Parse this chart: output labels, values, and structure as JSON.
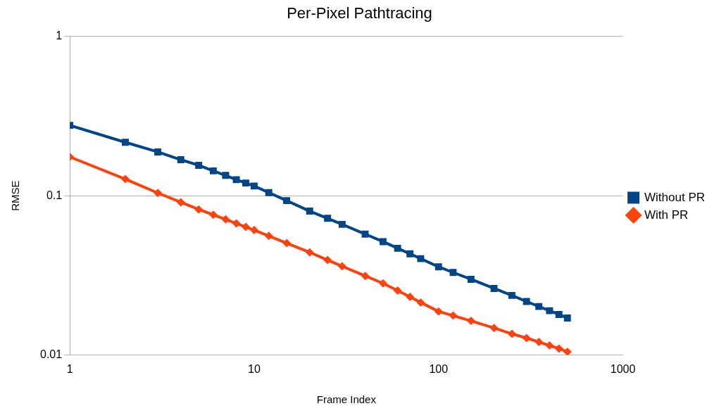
{
  "chart_data": {
    "type": "line",
    "title": "Per-Pixel Pathtracing",
    "xlabel": "Frame Index",
    "ylabel": "RMSE",
    "log": "xy",
    "grid": "y",
    "legend": "right",
    "xlim": [
      1,
      1000
    ],
    "xticks": [
      1,
      10,
      100,
      1000
    ],
    "ylim": [
      0.01,
      1
    ],
    "yticks": [
      0.01,
      0.1,
      1
    ],
    "x": [
      1,
      2,
      3,
      4,
      5,
      6,
      7,
      8,
      9,
      10,
      12,
      15,
      20,
      25,
      30,
      40,
      50,
      60,
      70,
      80,
      100,
      120,
      150,
      200,
      250,
      300,
      350,
      400,
      450,
      500
    ],
    "series": [
      {
        "name": "Without PR",
        "color": "#004586",
        "marker": "square",
        "values": [
          0.276,
          0.216,
          0.188,
          0.168,
          0.155,
          0.143,
          0.134,
          0.126,
          0.12,
          0.115,
          0.1045,
          0.0931,
          0.08,
          0.0721,
          0.0661,
          0.0574,
          0.0515,
          0.0468,
          0.0432,
          0.0403,
          0.0358,
          0.033,
          0.0299,
          0.0262,
          0.0237,
          0.0217,
          0.0202,
          0.019,
          0.018,
          0.0171
        ]
      },
      {
        "name": "With PR",
        "color": "#ff420e",
        "marker": "diamond",
        "values": [
          0.175,
          0.127,
          0.104,
          0.091,
          0.082,
          0.0759,
          0.071,
          0.067,
          0.0637,
          0.0608,
          0.0559,
          0.0504,
          0.0441,
          0.0395,
          0.0361,
          0.0314,
          0.0282,
          0.0254,
          0.0232,
          0.0214,
          0.0188,
          0.0177,
          0.0164,
          0.0148,
          0.0136,
          0.0128,
          0.0121,
          0.0115,
          0.011,
          0.0105
        ]
      }
    ]
  }
}
